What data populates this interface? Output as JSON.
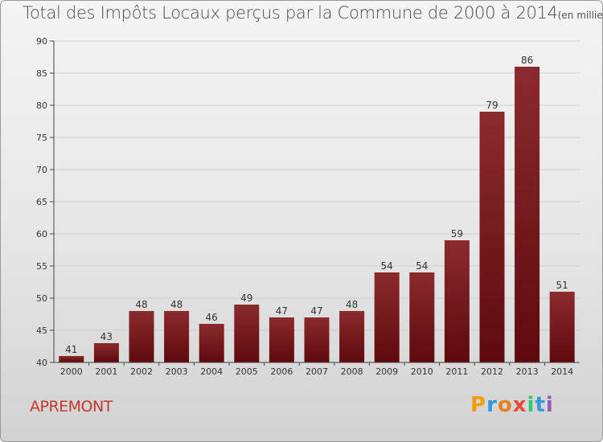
{
  "title": "Total des Impôts Locaux perçus par la Commune de 2000 à 2014",
  "unit": "(en milliers d'€)",
  "commune": "APREMONT",
  "brand": {
    "letters": [
      {
        "ch": "P",
        "color": "#f39c12"
      },
      {
        "ch": "r",
        "color": "#3498db"
      },
      {
        "ch": "o",
        "color": "#e67e22"
      },
      {
        "ch": "x",
        "color": "#e74c3c"
      },
      {
        "ch": "i",
        "color": "#2ecc71"
      },
      {
        "ch": "t",
        "color": "#3498db"
      },
      {
        "ch": "i",
        "color": "#9b59b6"
      }
    ]
  },
  "colors": {
    "bar_top": "#8b2a2f",
    "bar_bottom": "#5e0a0c",
    "grid": "#cfcfcf"
  },
  "chart_data": {
    "type": "bar",
    "title": "Total des Impôts Locaux perçus par la Commune de 2000 à 2014",
    "xlabel": "",
    "ylabel": "",
    "categories": [
      "2000",
      "2001",
      "2002",
      "2003",
      "2004",
      "2005",
      "2006",
      "2007",
      "2008",
      "2009",
      "2010",
      "2011",
      "2012",
      "2013",
      "2014"
    ],
    "values": [
      41,
      43,
      48,
      48,
      46,
      49,
      47,
      47,
      48,
      54,
      54,
      59,
      79,
      86,
      51
    ],
    "ylim": [
      40,
      90
    ],
    "yticks": [
      40,
      45,
      50,
      55,
      60,
      65,
      70,
      75,
      80,
      85,
      90
    ],
    "grid": true
  }
}
